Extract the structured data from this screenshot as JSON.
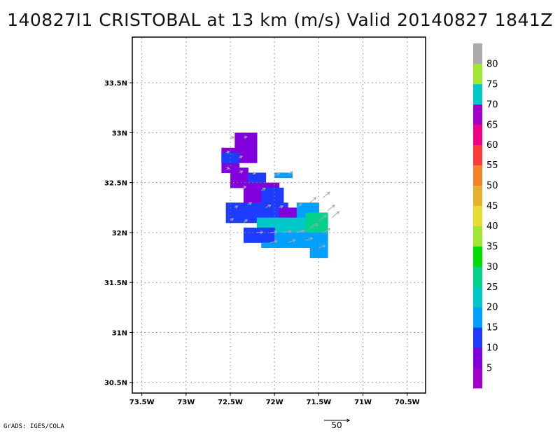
{
  "title": "140827I1 CRISTOBAL at 13 km (m/s) Valid 20140827 1841Z",
  "credit": "GrADS: IGES/COLA",
  "reference_vector_label": "50",
  "chart_data": {
    "type": "heatmap",
    "title": "140827I1 CRISTOBAL at 13 km (m/s) Valid 20140827 1841Z",
    "x_ticks": [
      {
        "value": -73.5,
        "label": "73.5W"
      },
      {
        "value": -73.0,
        "label": "73W"
      },
      {
        "value": -72.5,
        "label": "72.5W"
      },
      {
        "value": -72.0,
        "label": "72W"
      },
      {
        "value": -71.5,
        "label": "71.5W"
      },
      {
        "value": -71.0,
        "label": "71W"
      },
      {
        "value": -70.5,
        "label": "70.5W"
      }
    ],
    "y_ticks": [
      {
        "value": 30.5,
        "label": "30.5N"
      },
      {
        "value": 31.0,
        "label": "31N"
      },
      {
        "value": 31.5,
        "label": "31.5N"
      },
      {
        "value": 32.0,
        "label": "32N"
      },
      {
        "value": 32.5,
        "label": "32.5N"
      },
      {
        "value": 33.0,
        "label": "33N"
      },
      {
        "value": 33.5,
        "label": "33.5N"
      }
    ],
    "xlim": [
      -73.6,
      -70.3
    ],
    "ylim": [
      30.4,
      33.95
    ],
    "grid": true,
    "colorbar": {
      "bins": [
        {
          "lo": 0,
          "hi": 5,
          "color": "#a000c8"
        },
        {
          "lo": 5,
          "hi": 10,
          "color": "#8200dc"
        },
        {
          "lo": 10,
          "hi": 15,
          "color": "#1e3cff"
        },
        {
          "lo": 15,
          "hi": 20,
          "color": "#00a0ff"
        },
        {
          "lo": 20,
          "hi": 25,
          "color": "#00c8c8"
        },
        {
          "lo": 25,
          "hi": 30,
          "color": "#00d28c"
        },
        {
          "lo": 30,
          "hi": 35,
          "color": "#00dc00"
        },
        {
          "lo": 35,
          "hi": 40,
          "color": "#a0e632"
        },
        {
          "lo": 40,
          "hi": 45,
          "color": "#e6dc32"
        },
        {
          "lo": 45,
          "hi": 50,
          "color": "#e6af2d"
        },
        {
          "lo": 50,
          "hi": 55,
          "color": "#f08228"
        },
        {
          "lo": 55,
          "hi": 60,
          "color": "#fa3c3c"
        },
        {
          "lo": 60,
          "hi": 65,
          "color": "#f00082"
        },
        {
          "lo": 65,
          "hi": 70,
          "color": "#a000c8"
        },
        {
          "lo": 70,
          "hi": 75,
          "color": "#00c8c8"
        },
        {
          "lo": 75,
          "hi": 80,
          "color": "#a0e632"
        },
        {
          "lo": 80,
          "hi": 85,
          "color": "#aaaaaa"
        }
      ],
      "labels": [
        "5",
        "10",
        "15",
        "20",
        "25",
        "30",
        "35",
        "40",
        "45",
        "50",
        "55",
        "60",
        "65",
        "70",
        "75",
        "80"
      ]
    },
    "cell_size_deg": [
      0.05,
      0.05
    ],
    "regions": [
      {
        "lon": [
          -72.45,
          -72.2
        ],
        "lat": [
          32.7,
          33.0
        ],
        "value": 7
      },
      {
        "lon": [
          -72.6,
          -72.4
        ],
        "lat": [
          32.6,
          32.85
        ],
        "value": 7
      },
      {
        "lon": [
          -72.6,
          -72.4
        ],
        "lat": [
          32.7,
          32.8
        ],
        "value": 12
      },
      {
        "lon": [
          -72.5,
          -72.3
        ],
        "lat": [
          32.45,
          32.65
        ],
        "value": 7
      },
      {
        "lon": [
          -72.3,
          -72.1
        ],
        "lat": [
          32.45,
          32.6
        ],
        "value": 12
      },
      {
        "lon": [
          -72.35,
          -71.95
        ],
        "lat": [
          32.25,
          32.5
        ],
        "value": 7
      },
      {
        "lon": [
          -72.15,
          -71.9
        ],
        "lat": [
          32.3,
          32.45
        ],
        "value": 12
      },
      {
        "lon": [
          -72.0,
          -71.8
        ],
        "lat": [
          32.55,
          32.62
        ],
        "value": 17
      },
      {
        "lon": [
          -72.55,
          -71.85
        ],
        "lat": [
          32.1,
          32.3
        ],
        "value": 12
      },
      {
        "lon": [
          -71.95,
          -71.75
        ],
        "lat": [
          32.1,
          32.27
        ],
        "value": 7
      },
      {
        "lon": [
          -71.75,
          -71.5
        ],
        "lat": [
          32.0,
          32.3
        ],
        "value": 17
      },
      {
        "lon": [
          -72.2,
          -71.65
        ],
        "lat": [
          31.95,
          32.15
        ],
        "value": 22
      },
      {
        "lon": [
          -71.65,
          -71.4
        ],
        "lat": [
          31.95,
          32.2
        ],
        "value": 27
      },
      {
        "lon": [
          -72.35,
          -72.0
        ],
        "lat": [
          31.9,
          32.05
        ],
        "value": 12
      },
      {
        "lon": [
          -72.0,
          -71.6
        ],
        "lat": [
          31.85,
          31.98
        ],
        "value": 17
      },
      {
        "lon": [
          -71.6,
          -71.4
        ],
        "lat": [
          31.75,
          31.98
        ],
        "value": 17
      },
      {
        "lon": [
          -72.15,
          -71.95
        ],
        "lat": [
          31.85,
          31.9
        ],
        "value": 17
      }
    ],
    "vectors": [
      {
        "lon": -72.5,
        "lat": 32.95,
        "u": 7,
        "v": 1
      },
      {
        "lon": -72.35,
        "lat": 32.95,
        "u": 7,
        "v": 2
      },
      {
        "lon": -72.55,
        "lat": 32.8,
        "u": 7,
        "v": 2
      },
      {
        "lon": -72.4,
        "lat": 32.75,
        "u": 6,
        "v": 3
      },
      {
        "lon": -72.55,
        "lat": 32.65,
        "u": 7,
        "v": -2
      },
      {
        "lon": -72.4,
        "lat": 32.6,
        "u": 7,
        "v": 3
      },
      {
        "lon": -72.25,
        "lat": 32.6,
        "u": 6,
        "v": -2
      },
      {
        "lon": -72.0,
        "lat": 32.58,
        "u": 10,
        "v": 2
      },
      {
        "lon": -71.85,
        "lat": 32.58,
        "u": 10,
        "v": 6
      },
      {
        "lon": -72.35,
        "lat": 32.45,
        "u": 5,
        "v": 2
      },
      {
        "lon": -72.15,
        "lat": 32.42,
        "u": 8,
        "v": 5
      },
      {
        "lon": -72.45,
        "lat": 32.25,
        "u": 6,
        "v": 3
      },
      {
        "lon": -72.3,
        "lat": 32.28,
        "u": 7,
        "v": 4
      },
      {
        "lon": -72.1,
        "lat": 32.25,
        "u": 10,
        "v": 5
      },
      {
        "lon": -71.95,
        "lat": 32.25,
        "u": 8,
        "v": 3
      },
      {
        "lon": -72.5,
        "lat": 32.12,
        "u": 6,
        "v": 4
      },
      {
        "lon": -72.35,
        "lat": 32.1,
        "u": 7,
        "v": 6
      },
      {
        "lon": -71.75,
        "lat": 32.25,
        "u": 10,
        "v": 8
      },
      {
        "lon": -71.6,
        "lat": 32.3,
        "u": 12,
        "v": 10
      },
      {
        "lon": -71.45,
        "lat": 32.35,
        "u": 13,
        "v": 11
      },
      {
        "lon": -71.4,
        "lat": 32.22,
        "u": 14,
        "v": 11
      },
      {
        "lon": -72.2,
        "lat": 32.0,
        "u": 12,
        "v": 1
      },
      {
        "lon": -72.05,
        "lat": 32.0,
        "u": 14,
        "v": 1
      },
      {
        "lon": -71.9,
        "lat": 32.0,
        "u": 16,
        "v": 3
      },
      {
        "lon": -71.75,
        "lat": 32.0,
        "u": 15,
        "v": 4
      },
      {
        "lon": -71.6,
        "lat": 32.05,
        "u": 16,
        "v": 7
      },
      {
        "lon": -71.5,
        "lat": 32.12,
        "u": 15,
        "v": 10
      },
      {
        "lon": -71.35,
        "lat": 32.15,
        "u": 14,
        "v": 12
      },
      {
        "lon": -72.05,
        "lat": 31.9,
        "u": 14,
        "v": 3
      },
      {
        "lon": -71.85,
        "lat": 31.9,
        "u": 15,
        "v": 5
      },
      {
        "lon": -71.65,
        "lat": 31.92,
        "u": 14,
        "v": 5
      },
      {
        "lon": -71.5,
        "lat": 31.85,
        "u": 13,
        "v": 4
      },
      {
        "lon": -71.45,
        "lat": 32.0,
        "u": 14,
        "v": 8
      }
    ],
    "reference_vector": {
      "magnitude": 50
    }
  }
}
